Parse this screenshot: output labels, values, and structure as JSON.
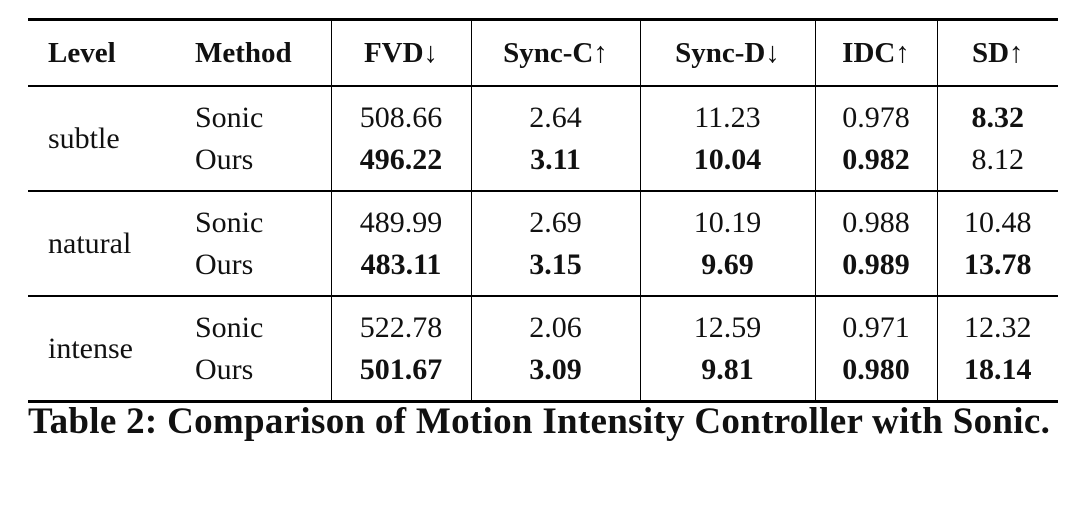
{
  "table": {
    "header": [
      "Level",
      "Method",
      "FVD↓",
      "Sync-C↑",
      "Sync-D↓",
      "IDC↑",
      "SD↑"
    ],
    "groups": [
      {
        "level": "subtle",
        "rows": [
          [
            "Sonic",
            "508.66",
            "2.64",
            "11.23",
            "0.978",
            "8.32"
          ],
          [
            "Ours",
            "496.22",
            "3.11",
            "10.04",
            "0.982",
            "8.12"
          ]
        ]
      },
      {
        "level": "natural",
        "rows": [
          [
            "Sonic",
            "489.99",
            "2.69",
            "10.19",
            "0.988",
            "10.48"
          ],
          [
            "Ours",
            "483.11",
            "3.15",
            "9.69",
            "0.989",
            "13.78"
          ]
        ]
      },
      {
        "level": "intense",
        "rows": [
          [
            "Sonic",
            "522.78",
            "2.06",
            "12.59",
            "0.971",
            "12.32"
          ],
          [
            "Ours",
            "501.67",
            "3.09",
            "9.81",
            "0.980",
            "18.14"
          ]
        ]
      }
    ]
  },
  "caption": "Table 2: Comparison of Motion Intensity Controller with Sonic."
}
